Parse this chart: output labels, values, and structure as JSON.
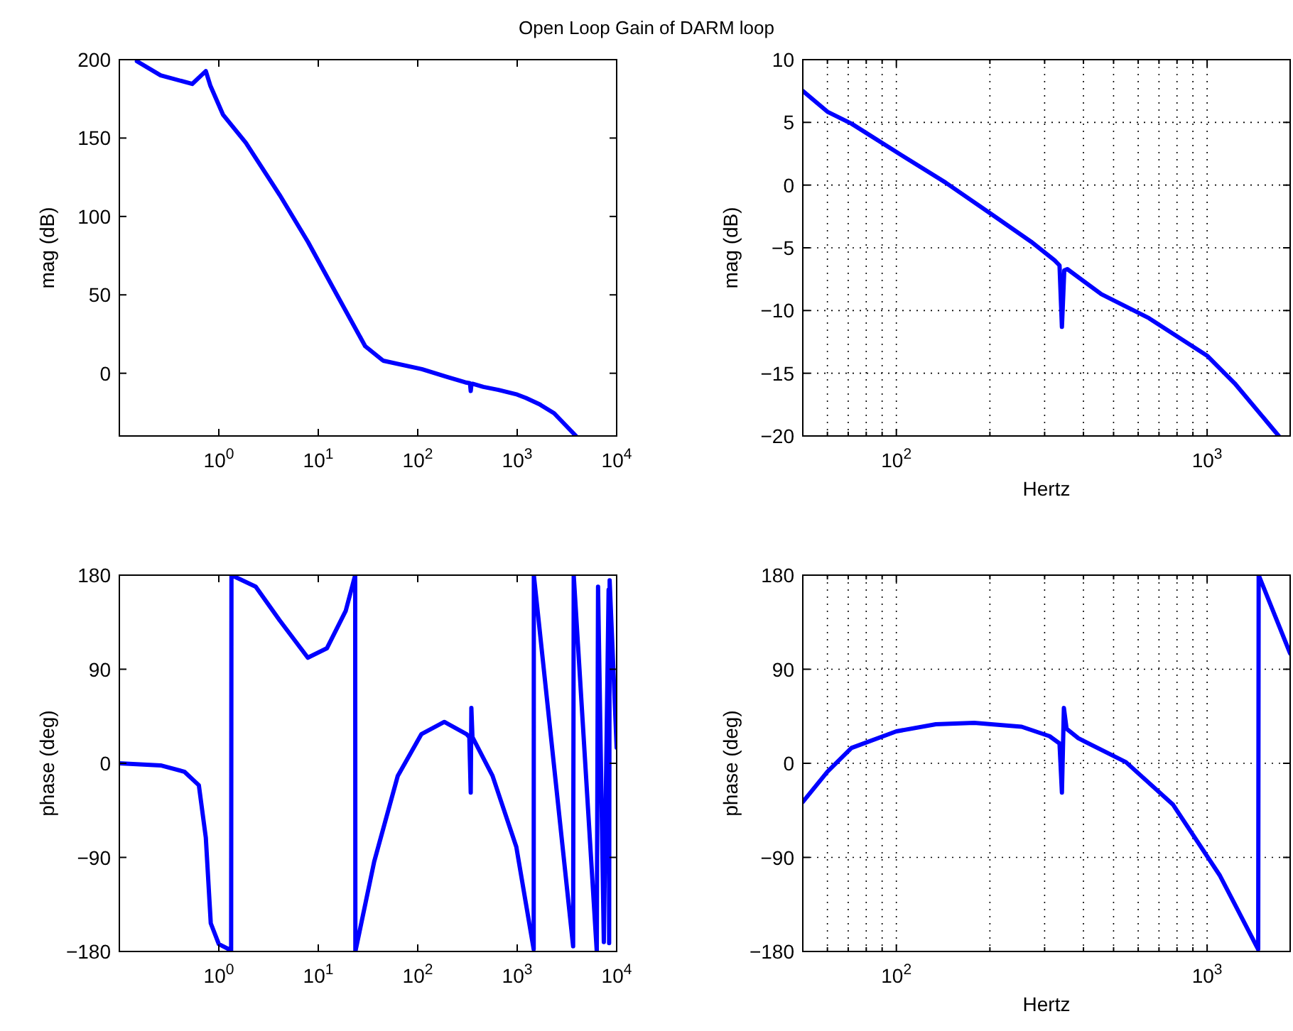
{
  "chart_data": [
    {
      "type": "line",
      "title": "Open Loop Gain of DARM loop",
      "ylabel": "mag (dB)",
      "log": "x",
      "grid": false,
      "xlim": [
        0.1,
        10000
      ],
      "ylim": [
        -40,
        200
      ],
      "xticks": [
        {
          "value": 1,
          "label": "10$^{0}$"
        },
        {
          "value": 10,
          "label": "10$^{1}$"
        },
        {
          "value": 100,
          "label": "10$^{2}$"
        },
        {
          "value": 1000,
          "label": "10$^{3}$"
        },
        {
          "value": 10000,
          "label": "10$^{4}$"
        }
      ],
      "yticks": [
        0,
        50,
        100,
        150,
        200
      ],
      "series": [
        {
          "color": "#0000ff",
          "x": [
            0.15,
            0.26,
            0.54,
            0.74,
            0.82,
            1.1,
            1.87,
            4.1,
            7.9,
            15.4,
            29.6,
            45,
            110,
            200,
            300,
            335,
            341,
            347,
            355,
            457,
            649,
            1000,
            1226,
            1700,
            2350,
            3900
          ],
          "values": [
            199,
            190,
            184.5,
            192.7,
            183.6,
            165,
            147,
            113.6,
            83.6,
            50,
            17.3,
            8,
            2.6,
            -2.5,
            -5.8,
            -6.4,
            -11.3,
            -6.8,
            -6.7,
            -8.7,
            -10.6,
            -13.6,
            -15.8,
            -20,
            -25.5,
            -40
          ]
        }
      ]
    },
    {
      "type": "line",
      "ylabel": "mag (dB)",
      "xlabel": "Hertz",
      "log": "x",
      "grid": true,
      "xlim": [
        50,
        1850
      ],
      "ylim": [
        -20,
        10
      ],
      "xticks": [
        {
          "value": 60,
          "label": null
        },
        {
          "value": 70,
          "label": null
        },
        {
          "value": 80,
          "label": null
        },
        {
          "value": 90,
          "label": null
        },
        {
          "value": 100,
          "label": "10$^{2}$"
        },
        {
          "value": 200,
          "label": null
        },
        {
          "value": 300,
          "label": null
        },
        {
          "value": 400,
          "label": null
        },
        {
          "value": 500,
          "label": null
        },
        {
          "value": 600,
          "label": null
        },
        {
          "value": 700,
          "label": null
        },
        {
          "value": 800,
          "label": null
        },
        {
          "value": 900,
          "label": null
        },
        {
          "value": 1000,
          "label": "10$^{3}$"
        }
      ],
      "yticks": [
        -20,
        -15,
        -10,
        -5,
        0,
        5,
        10
      ],
      "series": [
        {
          "color": "#0000ff",
          "x": [
            50,
            60,
            71.7,
            100,
            144,
            206,
            271,
            323,
            335,
            341,
            347,
            355,
            457,
            649,
            1000,
            1226,
            1700
          ],
          "values": [
            7.5,
            5.85,
            4.9,
            2.64,
            0.2,
            -2.45,
            -4.5,
            -6,
            -6.4,
            -11.3,
            -6.8,
            -6.7,
            -8.7,
            -10.6,
            -13.6,
            -15.8,
            -20
          ]
        }
      ]
    },
    {
      "type": "line",
      "ylabel": "phase (deg)",
      "log": "x",
      "grid": false,
      "xlim": [
        0.1,
        10000
      ],
      "ylim": [
        -180,
        180
      ],
      "xticks": [
        {
          "value": 1,
          "label": "10$^{0}$"
        },
        {
          "value": 10,
          "label": "10$^{1}$"
        },
        {
          "value": 100,
          "label": "10$^{2}$"
        },
        {
          "value": 1000,
          "label": "10$^{3}$"
        },
        {
          "value": 10000,
          "label": "10$^{4}$"
        }
      ],
      "yticks": [
        -180,
        -90,
        0,
        90,
        180
      ],
      "series": [
        {
          "color": "#0000ff",
          "x": [
            0.1,
            0.26,
            0.45,
            0.63,
            0.74,
            0.83,
            1,
            1.33,
            1.34,
            2.35,
            4.07,
            7.85,
            12.2,
            18.9,
            23.5,
            23.6,
            36.5,
            63,
            109,
            185,
            309,
            330,
            341,
            346,
            355,
            565,
            980,
            1465,
            1470,
            3650,
            3700,
            6310,
            6500,
            7430,
            8300,
            8400,
            8500,
            10000
          ],
          "values": [
            0,
            -2,
            -8,
            -21,
            -71,
            -153,
            -173,
            -179,
            180,
            169,
            137,
            101,
            110,
            146,
            180,
            -180,
            -94,
            -12,
            28,
            39.6,
            28,
            25,
            -28,
            53,
            25,
            -12,
            -80,
            -178,
            180,
            -175,
            180,
            -180,
            169,
            -171,
            166,
            -172,
            175,
            15
          ]
        }
      ]
    },
    {
      "type": "line",
      "ylabel": "phase (deg)",
      "xlabel": "Hertz",
      "log": "x",
      "grid": true,
      "xlim": [
        50,
        1850
      ],
      "ylim": [
        -180,
        180
      ],
      "xticks": [
        {
          "value": 60,
          "label": null
        },
        {
          "value": 70,
          "label": null
        },
        {
          "value": 80,
          "label": null
        },
        {
          "value": 90,
          "label": null
        },
        {
          "value": 100,
          "label": "10$^{2}$"
        },
        {
          "value": 200,
          "label": null
        },
        {
          "value": 300,
          "label": null
        },
        {
          "value": 400,
          "label": null
        },
        {
          "value": 500,
          "label": null
        },
        {
          "value": 600,
          "label": null
        },
        {
          "value": 700,
          "label": null
        },
        {
          "value": 800,
          "label": null
        },
        {
          "value": 900,
          "label": null
        },
        {
          "value": 1000,
          "label": "10$^{3}$"
        }
      ],
      "yticks": [
        -180,
        -90,
        0,
        90,
        180
      ],
      "series": [
        {
          "color": "#0000ff",
          "x": [
            50,
            60,
            71.7,
            100,
            134,
            178,
            253,
            311,
            335,
            341,
            346,
            353,
            385,
            548,
            777,
            1100,
            1460,
            1465,
            1850
          ],
          "values": [
            -37,
            -8,
            14.7,
            30.6,
            37.4,
            38.7,
            35,
            26,
            19,
            -28,
            53,
            33,
            24,
            1.1,
            -39.6,
            -107.5,
            -178,
            180,
            105
          ]
        }
      ]
    }
  ]
}
